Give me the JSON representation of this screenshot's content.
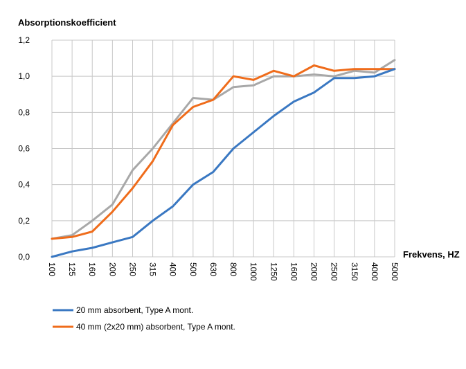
{
  "chart_data": {
    "type": "line",
    "ylabel": "Absorptionskoefficient",
    "xlabel": "Frekvens, HZ",
    "categories": [
      "100",
      "125",
      "160",
      "200",
      "250",
      "315",
      "400",
      "500",
      "630",
      "800",
      "1000",
      "1250",
      "1600",
      "2000",
      "2500",
      "3150",
      "4000",
      "5000"
    ],
    "y_ticks": [
      "0,0",
      "0,2",
      "0,4",
      "0,6",
      "0,8",
      "1,0",
      "1,2"
    ],
    "ylim": [
      0,
      1.2
    ],
    "grid": "vertical and horizontal",
    "legend_placement": "bottom-left",
    "series": [
      {
        "name": "20 mm absorbent, Type A mont.",
        "color": "#3a78c2",
        "values": [
          0.0,
          0.03,
          0.05,
          0.08,
          0.11,
          0.2,
          0.28,
          0.4,
          0.47,
          0.6,
          0.69,
          0.78,
          0.86,
          0.91,
          0.99,
          0.99,
          1.0,
          1.04
        ]
      },
      {
        "name": "40 mm (2x20 mm) absorbent, Type A mont.",
        "color": "#ef6c1b",
        "values": [
          0.1,
          0.11,
          0.14,
          0.25,
          0.38,
          0.53,
          0.73,
          0.83,
          0.87,
          1.0,
          0.98,
          1.03,
          1.0,
          1.06,
          1.03,
          1.04,
          1.04,
          1.04
        ]
      },
      {
        "name": "",
        "color": "#a8a8a8",
        "values": [
          0.1,
          0.12,
          0.2,
          0.29,
          0.48,
          0.6,
          0.74,
          0.88,
          0.87,
          0.94,
          0.95,
          1.0,
          1.0,
          1.01,
          1.0,
          1.03,
          1.02,
          1.09
        ]
      }
    ]
  }
}
